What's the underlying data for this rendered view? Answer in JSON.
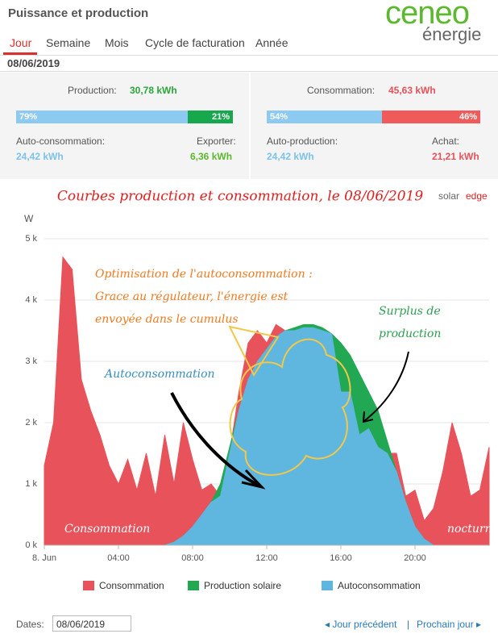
{
  "header": {
    "title": "Puissance et production",
    "logo": [
      "ceneo",
      "énergie"
    ]
  },
  "tabs": [
    "Jour",
    "Semaine",
    "Mois",
    "Cycle de facturation",
    "Année"
  ],
  "date": "08/06/2019",
  "production": {
    "label": "Production:",
    "total": "30,78 kWh",
    "split": [
      {
        "value": 79,
        "label": "79%"
      },
      {
        "value": 21,
        "label": "21%"
      }
    ],
    "left_label": "Auto-consommation:",
    "left_value": "24,42 kWh",
    "right_label": "Exporter:",
    "right_value": "6,36 kWh"
  },
  "consommation": {
    "label": "Consommation:",
    "total": "45,63 kWh",
    "split": [
      {
        "value": 54,
        "label": "54%"
      },
      {
        "value": 46,
        "label": "46%"
      }
    ],
    "left_label": "Auto-production:",
    "left_value": "24,42 kWh",
    "right_label": "Achat:",
    "right_value": "21,21 kWh"
  },
  "chart_data": {
    "type": "area",
    "title": "Courbes production et consommation, le 08/06/2019",
    "brand": [
      "solar",
      "edge"
    ],
    "y_label": "W",
    "x": [
      0,
      0.5,
      1,
      1.5,
      2,
      2.5,
      3,
      3.5,
      4,
      4.5,
      5,
      5.5,
      6,
      6.5,
      7,
      7.5,
      8,
      8.5,
      9,
      9.5,
      10,
      10.5,
      11,
      11.5,
      12,
      12.5,
      13,
      13.5,
      14,
      14.5,
      15,
      15.5,
      16,
      16.5,
      17,
      17.5,
      18,
      18.5,
      19,
      19.5,
      20,
      20.5,
      21,
      21.5,
      22,
      22.5,
      23,
      23.5,
      24
    ],
    "xlim": [
      0,
      24
    ],
    "xticks": [
      {
        "value": 0,
        "label": "8. Jun"
      },
      {
        "value": 4,
        "label": "04:00"
      },
      {
        "value": 8,
        "label": "08:00"
      },
      {
        "value": 12,
        "label": "12:00"
      },
      {
        "value": 16,
        "label": "16:00"
      },
      {
        "value": 20,
        "label": "20:00"
      }
    ],
    "ylim": [
      0,
      5000
    ],
    "yticks": [
      {
        "value": 0,
        "label": "0 k"
      },
      {
        "value": 1000,
        "label": "1 k"
      },
      {
        "value": 2000,
        "label": "2 k"
      },
      {
        "value": 3000,
        "label": "3 k"
      },
      {
        "value": 4000,
        "label": "4 k"
      },
      {
        "value": 5000,
        "label": "5 k"
      }
    ],
    "grid": true,
    "series": [
      {
        "name": "Consommation",
        "color": "#e8525a",
        "values": [
          1300,
          2000,
          4700,
          4500,
          2700,
          2200,
          1800,
          1300,
          1000,
          1400,
          900,
          1500,
          800,
          1800,
          1000,
          2000,
          1400,
          900,
          1000,
          800,
          1500,
          2500,
          3300,
          3500,
          3300,
          3600,
          3500,
          3500,
          3550,
          3550,
          3500,
          3450,
          2500,
          2500,
          1800,
          1900,
          1600,
          1500,
          1500,
          800,
          900,
          400,
          600,
          1200,
          2000,
          1500,
          800,
          900,
          1600
        ]
      },
      {
        "name": "Production solaire",
        "color": "#22a852",
        "values": [
          0,
          0,
          0,
          0,
          0,
          0,
          0,
          0,
          0,
          0,
          0,
          0,
          0,
          0,
          50,
          150,
          300,
          500,
          700,
          1000,
          1600,
          2200,
          2700,
          3000,
          3200,
          3400,
          3500,
          3550,
          3600,
          3600,
          3550,
          3450,
          3300,
          3100,
          2800,
          2500,
          2200,
          1700,
          1200,
          700,
          300,
          100,
          0,
          0,
          0,
          0,
          0,
          0,
          0
        ]
      },
      {
        "name": "Autoconsommation",
        "color": "#5fb6de",
        "values": [
          0,
          0,
          0,
          0,
          0,
          0,
          0,
          0,
          0,
          0,
          0,
          0,
          0,
          0,
          50,
          150,
          300,
          500,
          700,
          800,
          1500,
          2200,
          2700,
          3000,
          3200,
          3400,
          3500,
          3500,
          3550,
          3550,
          3500,
          3450,
          2500,
          2500,
          1800,
          1900,
          1600,
          1500,
          1200,
          700,
          300,
          100,
          0,
          0,
          0,
          0,
          0,
          0,
          0
        ]
      }
    ],
    "annotations": [
      "Optimisation de l'autoconsommation :",
      "Grace au régulateur, l'énergie est",
      "envoyée dans le cumulus",
      "Autoconsommation",
      "Surplus de",
      "production",
      "Consommation",
      "nocturne"
    ]
  },
  "footer": {
    "dates_label": "Dates:",
    "date_input": "08/06/2019",
    "prev": "Jour précédent",
    "next": "Prochain jour"
  }
}
